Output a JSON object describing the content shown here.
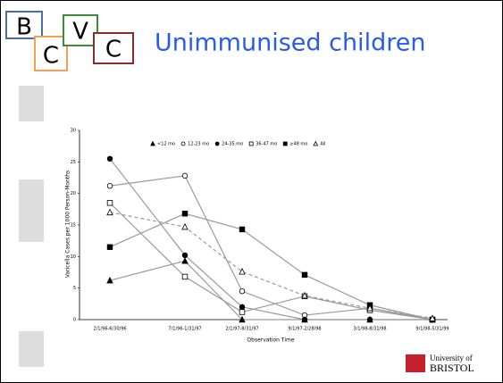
{
  "header": {
    "logo_letters": [
      "B",
      "C",
      "V",
      "C"
    ],
    "title": "Unimmunised children"
  },
  "chart_data": {
    "type": "line",
    "y_label": "Varicella Cases per 1000 Person-Months",
    "x_label": "Observation Time",
    "categories": [
      "2/1/96-6/30/96",
      "7/1/96-1/31/97",
      "2/1/97-8/31/97",
      "9/1/97-2/28/98",
      "3/1/98-8/31/98",
      "9/1/98-5/31/99"
    ],
    "series": [
      {
        "name": "<12 mo",
        "color": "#9a9a9a",
        "marker": "triangle",
        "filled": true,
        "dashed": false,
        "values": [
          6.2,
          9.3,
          0,
          0,
          0,
          0
        ]
      },
      {
        "name": "12-23 mo",
        "color": "#9a9a9a",
        "marker": "circle",
        "filled": false,
        "dashed": false,
        "values": [
          21.2,
          22.8,
          4.5,
          0.7,
          1.8,
          0
        ]
      },
      {
        "name": "24-35 mo",
        "color": "#9a9a9a",
        "marker": "circle",
        "filled": true,
        "dashed": false,
        "values": [
          25.5,
          10.2,
          2,
          0,
          0,
          0
        ]
      },
      {
        "name": "36-47 mo",
        "color": "#9a9a9a",
        "marker": "square",
        "filled": false,
        "dashed": false,
        "values": [
          18.5,
          6.8,
          1.2,
          3.7,
          1.5,
          0
        ]
      },
      {
        "name": "≥48 mo",
        "color": "#9a9a9a",
        "marker": "square",
        "filled": true,
        "dashed": false,
        "values": [
          11.5,
          16.8,
          14.3,
          7.1,
          2.3,
          0
        ]
      },
      {
        "name": "All",
        "color": "#9a9a9a",
        "marker": "triangle",
        "filled": false,
        "dashed": true,
        "values": [
          17,
          14.7,
          7.6,
          3.8,
          1.8,
          0.2
        ]
      }
    ],
    "ylim": [
      0,
      30
    ],
    "yticks": [
      0,
      5,
      10,
      15,
      20,
      25,
      30
    ],
    "grid": false,
    "legend": "top"
  },
  "footer": {
    "university_line1": "University of",
    "university_line2": "BRISTOL"
  }
}
